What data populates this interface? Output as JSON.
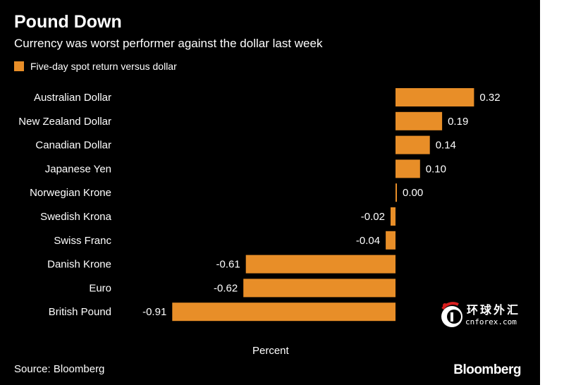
{
  "colors": {
    "background": "#000000",
    "bar": "#E88E28",
    "text": "#FFFFFF"
  },
  "chart_data": {
    "type": "bar",
    "orientation": "horizontal",
    "title": "Pound Down",
    "subtitle": "Currency was worst performer against the dollar last week",
    "legend": "Five-day spot return versus dollar",
    "legend_position": "top-left",
    "xlabel": "Percent",
    "grid": false,
    "xlim": [
      -0.91,
      0.32
    ],
    "categories": [
      "Australian Dollar",
      "New Zealand Dollar",
      "Canadian Dollar",
      "Japanese Yen",
      "Norwegian Krone",
      "Swedish Krona",
      "Swiss Franc",
      "Danish Krone",
      "Euro",
      "British Pound"
    ],
    "values": [
      0.32,
      0.19,
      0.14,
      0.1,
      0.0,
      -0.02,
      -0.04,
      -0.61,
      -0.62,
      -0.91
    ],
    "value_labels": [
      "0.32",
      "0.19",
      "0.14",
      "0.10",
      "0.00",
      "-0.02",
      "-0.04",
      "-0.61",
      "-0.62",
      "-0.91"
    ]
  },
  "footer": {
    "source": "Source: Bloomberg",
    "brand": "Bloomberg"
  },
  "watermark": {
    "cn": "环球外汇",
    "url": "cnforex.com"
  }
}
